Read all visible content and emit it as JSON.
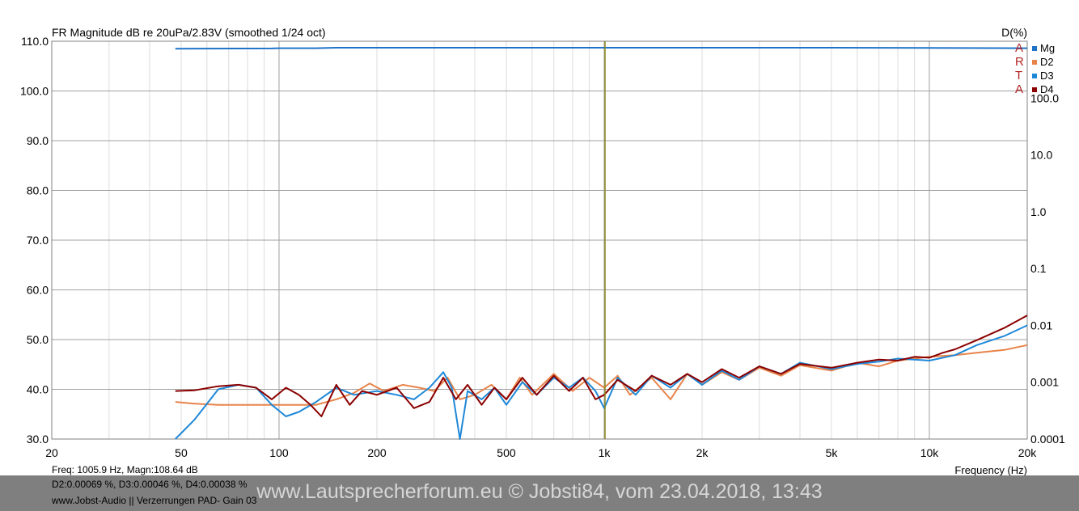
{
  "chart_data": {
    "type": "line",
    "title": "FR Magnitude dB re 20uPa/2.83V (smoothed 1/24 oct)",
    "right_axis_title": "D(%)",
    "xlabel": "Frequency (Hz)",
    "x_scale": "log",
    "xlim": [
      20,
      20000
    ],
    "ylim": [
      30,
      110
    ],
    "y2_scale": "log",
    "y2lim": [
      0.0001,
      1000
    ],
    "x_ticks": [
      {
        "v": 20,
        "label": "20"
      },
      {
        "v": 50,
        "label": "50"
      },
      {
        "v": 100,
        "label": "100"
      },
      {
        "v": 200,
        "label": "200"
      },
      {
        "v": 500,
        "label": "500"
      },
      {
        "v": 1000,
        "label": "1k"
      },
      {
        "v": 2000,
        "label": "2k"
      },
      {
        "v": 5000,
        "label": "5k"
      },
      {
        "v": 10000,
        "label": "10k"
      },
      {
        "v": 20000,
        "label": "20k"
      }
    ],
    "y_ticks": [
      "30.0",
      "40.0",
      "50.0",
      "60.0",
      "70.0",
      "80.0",
      "90.0",
      "100.0",
      "110.0"
    ],
    "y2_ticks": [
      "0.0001",
      "0.001",
      "0.01",
      "0.1",
      "1.0",
      "10.0",
      "100.0"
    ],
    "grid": true,
    "legend_position": "top-right",
    "cursor_freq": 1005.9,
    "colors": {
      "Mg": "#1e73c8",
      "D2": "#e8844a",
      "D3": "#1e88d8",
      "D4": "#8b0000",
      "cursor": "#8a8a1e",
      "grid": "#a0a0a0"
    },
    "series": [
      {
        "name": "Mg",
        "axis": "left",
        "x": [
          48,
          95,
          100,
          130,
          150,
          300,
          1000,
          5000,
          20000
        ],
        "y": [
          108.5,
          108.55,
          108.6,
          108.6,
          108.7,
          108.7,
          108.7,
          108.7,
          108.6
        ]
      },
      {
        "name": "D2",
        "axis": "right",
        "x": [
          48,
          55,
          65,
          75,
          90,
          110,
          130,
          150,
          170,
          190,
          210,
          240,
          270,
          300,
          330,
          360,
          400,
          450,
          500,
          550,
          600,
          700,
          800,
          900,
          1000,
          1100,
          1200,
          1400,
          1600,
          1800,
          2000,
          2300,
          2600,
          3000,
          3500,
          4000,
          5000,
          6000,
          7000,
          8000,
          10000,
          12000,
          14000,
          17000,
          20000
        ],
        "y": [
          0.00045,
          0.00042,
          0.0004,
          0.0004,
          0.0004,
          0.0004,
          0.0004,
          0.0005,
          0.00065,
          0.00095,
          0.0007,
          0.0009,
          0.0008,
          0.0007,
          0.0012,
          0.0005,
          0.0006,
          0.0009,
          0.0005,
          0.0012,
          0.0006,
          0.0014,
          0.0007,
          0.0012,
          0.0008,
          0.0013,
          0.0006,
          0.0012,
          0.0005,
          0.0014,
          0.0009,
          0.0015,
          0.0011,
          0.0018,
          0.0013,
          0.002,
          0.0016,
          0.0022,
          0.0019,
          0.0024,
          0.0028,
          0.003,
          0.0033,
          0.0037,
          0.0045
        ]
      },
      {
        "name": "D3",
        "axis": "right",
        "x": [
          48,
          55,
          65,
          75,
          85,
          95,
          105,
          115,
          130,
          150,
          170,
          200,
          230,
          260,
          290,
          320,
          340,
          360,
          380,
          420,
          460,
          500,
          560,
          620,
          700,
          780,
          860,
          940,
          1000,
          1100,
          1250,
          1400,
          1600,
          1800,
          2000,
          2300,
          2600,
          3000,
          3500,
          4000,
          5000,
          6000,
          7000,
          8000,
          10000,
          12000,
          14000,
          17000,
          20000
        ],
        "y": [
          0.0001,
          0.00022,
          0.00075,
          0.0009,
          0.0008,
          0.0004,
          0.00025,
          0.0003,
          0.00045,
          0.0008,
          0.0006,
          0.0007,
          0.0006,
          0.0005,
          0.0008,
          0.0015,
          0.0008,
          0.0001,
          0.0007,
          0.0005,
          0.0008,
          0.0004,
          0.001,
          0.0006,
          0.0012,
          0.0008,
          0.0012,
          0.0007,
          0.00035,
          0.0012,
          0.0006,
          0.0013,
          0.0008,
          0.0014,
          0.0009,
          0.0016,
          0.0011,
          0.0019,
          0.0014,
          0.0022,
          0.0017,
          0.0021,
          0.0023,
          0.0026,
          0.0024,
          0.003,
          0.0045,
          0.0065,
          0.01
        ]
      },
      {
        "name": "D4",
        "axis": "right",
        "x": [
          48,
          55,
          65,
          75,
          85,
          95,
          105,
          115,
          125,
          135,
          150,
          165,
          180,
          200,
          230,
          260,
          290,
          320,
          350,
          380,
          420,
          460,
          500,
          560,
          620,
          700,
          780,
          860,
          940,
          1000,
          1100,
          1250,
          1400,
          1600,
          1800,
          2000,
          2300,
          2600,
          3000,
          3500,
          4000,
          5000,
          6000,
          7000,
          8000,
          9000,
          10000,
          11000,
          12000,
          14000,
          17000,
          20000
        ],
        "y": [
          0.0007,
          0.00072,
          0.00085,
          0.0009,
          0.0008,
          0.0005,
          0.0008,
          0.0006,
          0.0004,
          0.00025,
          0.0009,
          0.0004,
          0.0007,
          0.0006,
          0.0008,
          0.00035,
          0.00045,
          0.0012,
          0.0005,
          0.0009,
          0.0004,
          0.0008,
          0.0005,
          0.0012,
          0.0006,
          0.0013,
          0.0007,
          0.0012,
          0.0005,
          0.0006,
          0.0011,
          0.0007,
          0.0013,
          0.0009,
          0.0014,
          0.001,
          0.0017,
          0.0012,
          0.0019,
          0.0014,
          0.0021,
          0.0018,
          0.0022,
          0.0025,
          0.0024,
          0.0028,
          0.0027,
          0.0033,
          0.0038,
          0.0055,
          0.009,
          0.015
        ]
      }
    ]
  },
  "info": {
    "line1": "Freq: 1005.9 Hz, Magn:108.64 dB",
    "line2": "D2:0.00069 %, D3:0.00046 %, D4:0.00038 %",
    "line3": "www.Jobst-Audio  ||  Verzerrungen  PAD- Gain 03"
  },
  "watermark": "www.Lautsprecherforum.eu © Jobsti84, vom 23.04.2018, 13:43",
  "brand_letters": [
    "A",
    "R",
    "T",
    "A"
  ]
}
